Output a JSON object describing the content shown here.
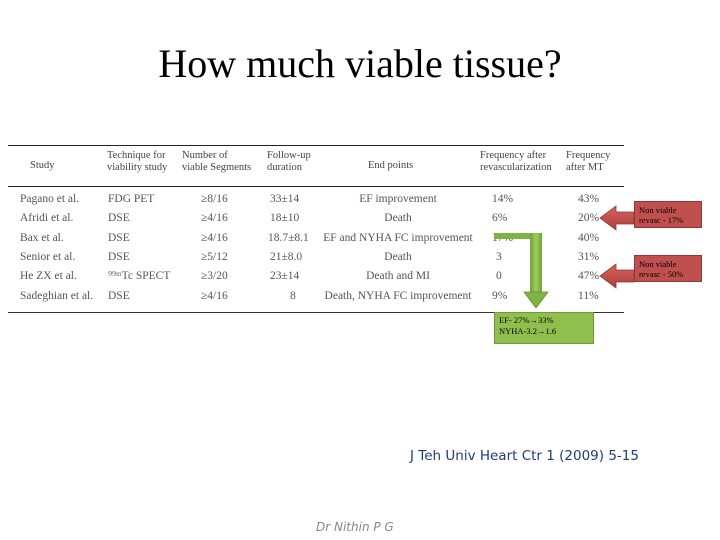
{
  "title": "How much viable tissue?",
  "table": {
    "headers": [
      "Study",
      "Technique for viability study",
      "Number of viable Segments",
      "Follow-up duration",
      "End points",
      "Frequency after revascularization",
      "Frequency after MT"
    ],
    "rows": [
      [
        "Pagano et al.",
        "FDG PET",
        "≥8/16",
        "33±14",
        "EF improvement",
        "14%",
        "43%"
      ],
      [
        "Afridi et al.",
        "DSE",
        "≥4/16",
        "18±10",
        "Death",
        "6%",
        "20%"
      ],
      [
        "Bax et al.",
        "DSE",
        "≥4/16",
        "18.7±8.1",
        "EF and NYHA FC improvement",
        "17%",
        "40%"
      ],
      [
        "Senior et al.",
        "DSE",
        "≥5/12",
        "21±8.0",
        "Death",
        "3",
        "31%"
      ],
      [
        "He ZX et al.",
        "⁹⁹ᵐTc SPECT",
        "≥3/20",
        "23±14",
        "Death and MI",
        "0",
        "47%"
      ],
      [
        "Sadeghian et al.",
        "DSE",
        "≥4/16",
        "8",
        "Death, NYHA FC improvement",
        "9%",
        "11%"
      ]
    ]
  },
  "callouts": {
    "upper": "Non viable revasc - 17%",
    "lower": "Non viable revasc - 50%"
  },
  "ef_box": {
    "line1": "EF- 27%→33%",
    "line2": "NYHA-3.2→1.6"
  },
  "citation": "J Teh Univ Heart Ctr 1 (2009) 5-15",
  "author": "Dr Nithin P G",
  "colors": {
    "callout_fill": "#c0504d",
    "green_box_fill": "#8fbf4d",
    "citation_text": "#1f3c7a"
  }
}
